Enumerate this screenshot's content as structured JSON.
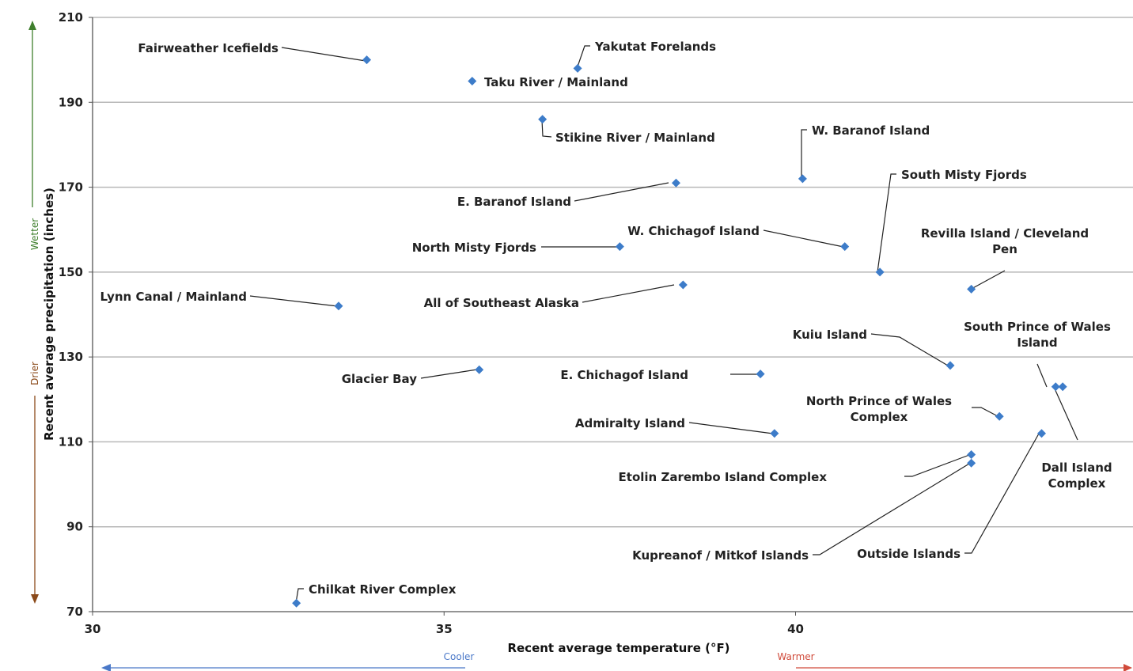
{
  "chart_data": {
    "type": "scatter",
    "title": "",
    "xlabel": "Recent average temperature (°F)",
    "ylabel": "Recent average precipitation (inches)",
    "xlim": [
      30,
      44.8
    ],
    "ylim": [
      70,
      210
    ],
    "x_ticks": [
      30,
      35,
      40
    ],
    "y_ticks": [
      70,
      90,
      110,
      130,
      150,
      170,
      190,
      210
    ],
    "grid": "horizontal",
    "marker_color": "#3d7cc9",
    "direction_labels": {
      "wetter": "Wetter",
      "drier": "Drier",
      "cooler": "Cooler",
      "warmer": "Warmer"
    },
    "direction_colors": {
      "wetter": "#3f7f2d",
      "drier": "#8b4a1a",
      "cooler": "#4a78c8",
      "warmer": "#d04a3a"
    },
    "points": [
      {
        "label": "Fairweather Icefields",
        "x": 33.9,
        "y": 200
      },
      {
        "label": "Yakutat Forelands",
        "x": 36.9,
        "y": 198
      },
      {
        "label": "Taku River / Mainland",
        "x": 35.4,
        "y": 195
      },
      {
        "label": "Stikine River / Mainland",
        "x": 36.4,
        "y": 186
      },
      {
        "label": "W. Baranof Island",
        "x": 40.1,
        "y": 172
      },
      {
        "label": "E. Baranof Island",
        "x": 38.3,
        "y": 171
      },
      {
        "label": "South Misty Fjords",
        "x": 41.2,
        "y": 150
      },
      {
        "label": "W. Chichagof Island",
        "x": 40.7,
        "y": 156
      },
      {
        "label": "North Misty Fjords",
        "x": 37.5,
        "y": 156
      },
      {
        "label": "Revilla Island / Cleveland Pen",
        "x": 42.5,
        "y": 146
      },
      {
        "label": "All of Southeast Alaska",
        "x": 38.4,
        "y": 147
      },
      {
        "label": "Lynn Canal / Mainland",
        "x": 33.5,
        "y": 142
      },
      {
        "label": "Kuiu Island",
        "x": 42.2,
        "y": 128
      },
      {
        "label": "South Prince of Wales Island",
        "x": 43.7,
        "y": 123
      },
      {
        "label": "Dall Island Complex",
        "x": 43.8,
        "y": 123
      },
      {
        "label": "Glacier Bay",
        "x": 35.5,
        "y": 127
      },
      {
        "label": "E. Chichagof Island",
        "x": 39.5,
        "y": 126
      },
      {
        "label": "North Prince of Wales Complex",
        "x": 42.9,
        "y": 116
      },
      {
        "label": "Admiralty Island",
        "x": 39.7,
        "y": 112
      },
      {
        "label": "Outside Islands",
        "x": 43.5,
        "y": 112
      },
      {
        "label": "Etolin Zarembo Island Complex",
        "x": 42.5,
        "y": 107
      },
      {
        "label": "Kupreanof / Mitkof Islands",
        "x": 42.5,
        "y": 105
      },
      {
        "label": "Chilkat River Complex",
        "x": 32.9,
        "y": 72
      }
    ]
  }
}
